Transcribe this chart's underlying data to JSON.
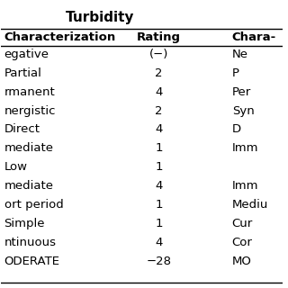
{
  "title": "Turbidity",
  "col_headers": [
    "haracterization",
    "Rating",
    "Chara-"
  ],
  "rows": [
    [
      "egative",
      "(−)",
      "Ne"
    ],
    [
      "Partial",
      "2",
      "P"
    ],
    [
      "rmanent",
      "4",
      "Per"
    ],
    [
      "nergistic",
      "2",
      "Syn"
    ],
    [
      "Direct",
      "4",
      "D"
    ],
    [
      "mediate",
      "1",
      "Imm"
    ],
    [
      "Low",
      "1",
      ""
    ],
    [
      "mediate",
      "4",
      "Imm"
    ],
    [
      "ort period",
      "1",
      "Mediu"
    ],
    [
      "Simple",
      "1",
      "Cur"
    ],
    [
      "ntinuous",
      "4",
      "Cor"
    ],
    [
      "ODERATE",
      "−28",
      "MO"
    ]
  ],
  "bg_color": "#ffffff",
  "text_color": "#000000",
  "font_size": 9.5,
  "title_font_size": 11
}
